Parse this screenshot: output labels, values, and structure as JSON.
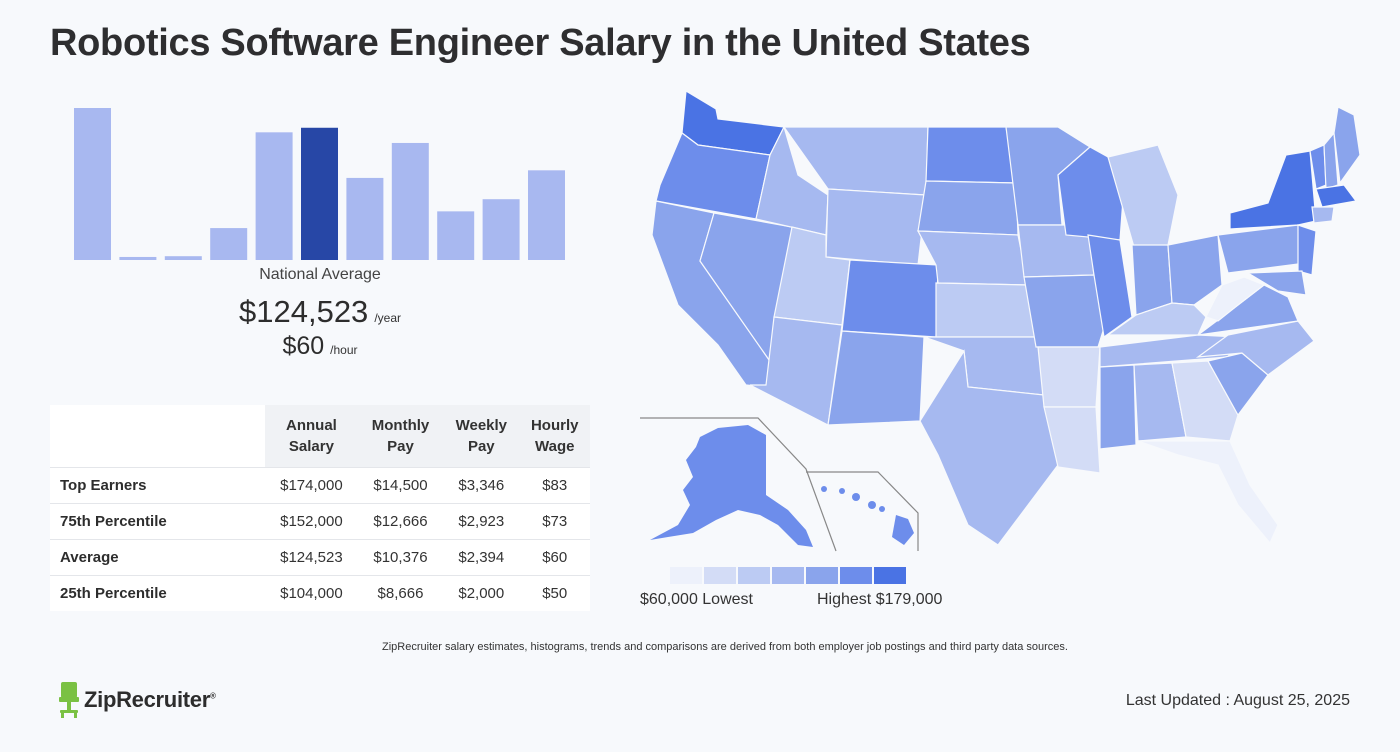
{
  "page": {
    "title": "Robotics Software Engineer Salary in the United States"
  },
  "summary": {
    "national_label": "National Average",
    "annual": "$124,523",
    "annual_unit": "/year",
    "hourly": "$60",
    "hourly_unit": "/hour"
  },
  "table": {
    "headers": [
      [
        "Annual",
        "Salary"
      ],
      [
        "Monthly",
        "Pay"
      ],
      [
        "Weekly",
        "Pay"
      ],
      [
        "Hourly",
        "Wage"
      ]
    ],
    "rows": [
      {
        "label": "Top Earners",
        "annual": "$174,000",
        "monthly": "$14,500",
        "weekly": "$3,346",
        "hourly": "$83"
      },
      {
        "label": "75th Percentile",
        "annual": "$152,000",
        "monthly": "$12,666",
        "weekly": "$2,923",
        "hourly": "$73"
      },
      {
        "label": "Average",
        "annual": "$124,523",
        "monthly": "$10,376",
        "weekly": "$2,394",
        "hourly": "$60"
      },
      {
        "label": "25th Percentile",
        "annual": "$104,000",
        "monthly": "$8,666",
        "weekly": "$2,000",
        "hourly": "$50"
      }
    ]
  },
  "chart_data": [
    {
      "type": "bar",
      "values": [
        100,
        2,
        2.5,
        21,
        84,
        87,
        54,
        77,
        32,
        40,
        59
      ],
      "highlight_index": 5,
      "colors": {
        "bar": "#a8b8f0",
        "highlight": "#2747a6"
      }
    },
    {
      "type": "heatmap",
      "legend_low": "$60,000 Lowest",
      "legend_high": "Highest $179,000",
      "scale_colors": [
        "#edf1fb",
        "#d3dcf6",
        "#bccbf3",
        "#a6b9f0",
        "#8aa4ec",
        "#6d8deb",
        "#4a73e4"
      ]
    }
  ],
  "footer": {
    "disclaimer": "ZipRecruiter salary estimates, histograms, trends and comparisons are derived from both employer job postings and third party data sources.",
    "brand": "ZipRecruiter",
    "brand_mark": "®",
    "last_updated": "Last Updated : August 25, 2025"
  }
}
